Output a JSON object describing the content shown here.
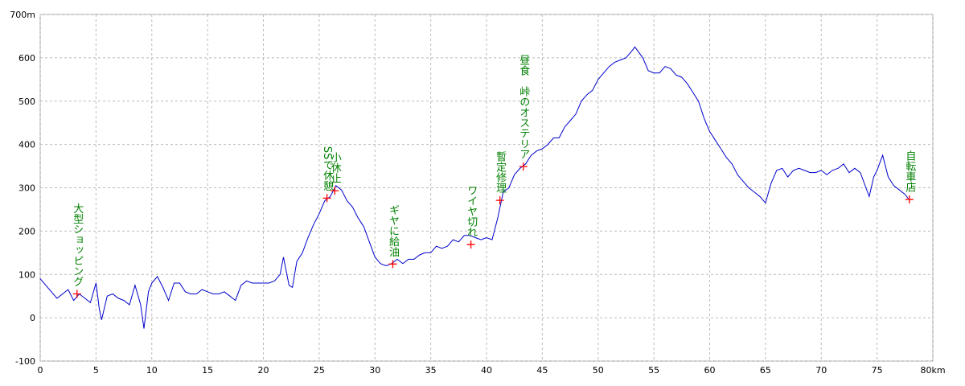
{
  "chart_data": {
    "type": "line",
    "color": "#0000cc",
    "grid": true,
    "marker_color": "#ff0000",
    "label_color": "#008000",
    "xlim": [
      0,
      80
    ],
    "ylim": [
      -100,
      700
    ],
    "xticks": [
      0,
      5,
      10,
      15,
      20,
      25,
      30,
      35,
      40,
      45,
      50,
      55,
      60,
      65,
      70,
      75,
      {
        "value": 80,
        "label": "80km"
      }
    ],
    "yticks": [
      -100,
      0,
      100,
      200,
      300,
      400,
      500,
      600,
      {
        "value": 700,
        "label": "700m"
      }
    ],
    "x": [
      0,
      0.5,
      1,
      1.5,
      2,
      2.5,
      3,
      3.5,
      4,
      4.5,
      5,
      5.3,
      5.5,
      6,
      6.5,
      7,
      7.5,
      8,
      8.5,
      9,
      9.3,
      9.7,
      10,
      10.5,
      11,
      11.5,
      12,
      12.5,
      13,
      13.5,
      14,
      14.5,
      15,
      15.5,
      16,
      16.5,
      17,
      17.5,
      18,
      18.5,
      19,
      19.5,
      20,
      20.5,
      21,
      21.5,
      21.8,
      22.3,
      22.6,
      23,
      23.5,
      24,
      24.5,
      25,
      25.5,
      26,
      26.5,
      27,
      27.5,
      28,
      28.5,
      29,
      29.5,
      30,
      30.5,
      31,
      31.5,
      32,
      32.5,
      33,
      33.5,
      34,
      34.5,
      35,
      35.5,
      36,
      36.5,
      37,
      37.5,
      38,
      38.5,
      39,
      39.5,
      40,
      40.5,
      41,
      41.5,
      42,
      42.5,
      43,
      43.5,
      44,
      44.5,
      45,
      45.5,
      46,
      46.5,
      47,
      47.5,
      48,
      48.5,
      49,
      49.5,
      50,
      50.5,
      51,
      51.5,
      52,
      52.5,
      53,
      53.3,
      54,
      54.5,
      55,
      55.5,
      56,
      56.5,
      57,
      57.5,
      58,
      58.5,
      59,
      59.5,
      60,
      60.5,
      61,
      61.5,
      62,
      62.5,
      63,
      63.5,
      64,
      64.5,
      65,
      65.5,
      66,
      66.5,
      67,
      67.5,
      68,
      68.5,
      69,
      69.5,
      70,
      70.5,
      71,
      71.5,
      72,
      72.5,
      73,
      73.5,
      74,
      74.3,
      74.7,
      75,
      75.5,
      76,
      76.5,
      77,
      77.5,
      77.8
    ],
    "values": [
      90,
      75,
      60,
      45,
      55,
      65,
      40,
      55,
      45,
      35,
      80,
      20,
      -5,
      50,
      55,
      45,
      40,
      30,
      75,
      30,
      -25,
      60,
      80,
      95,
      70,
      40,
      80,
      80,
      60,
      55,
      55,
      65,
      60,
      55,
      55,
      60,
      50,
      40,
      75,
      85,
      80,
      80,
      80,
      80,
      85,
      100,
      140,
      75,
      70,
      130,
      150,
      185,
      215,
      240,
      270,
      280,
      305,
      295,
      270,
      255,
      230,
      210,
      175,
      140,
      125,
      120,
      125,
      135,
      125,
      135,
      135,
      145,
      150,
      150,
      165,
      160,
      165,
      180,
      175,
      190,
      190,
      185,
      180,
      185,
      180,
      230,
      290,
      300,
      330,
      345,
      355,
      375,
      385,
      390,
      400,
      415,
      415,
      440,
      455,
      470,
      500,
      515,
      525,
      550,
      565,
      580,
      590,
      595,
      600,
      615,
      625,
      600,
      570,
      565,
      565,
      580,
      575,
      560,
      555,
      540,
      520,
      500,
      460,
      430,
      410,
      390,
      370,
      355,
      330,
      315,
      300,
      290,
      280,
      265,
      310,
      340,
      345,
      325,
      340,
      345,
      340,
      335,
      335,
      340,
      330,
      340,
      345,
      355,
      335,
      345,
      335,
      300,
      280,
      325,
      340,
      375,
      325,
      305,
      295,
      285,
      275
    ],
    "waypoints": [
      {
        "label": "大型ショッピング",
        "x": 3.3,
        "y": 55
      },
      {
        "label": "SSで休憩",
        "x": 25.7,
        "y": 276
      },
      {
        "label": "小休止",
        "x": 26.4,
        "y": 293
      },
      {
        "label": "ギヤに給油",
        "x": 31.6,
        "y": 124
      },
      {
        "label": "ワイヤ切れ",
        "x": 38.6,
        "y": 169
      },
      {
        "label": "暫定修理",
        "x": 41.2,
        "y": 271
      },
      {
        "label": "昼食　峠のオステリア",
        "x": 43.3,
        "y": 349
      },
      {
        "label": "自転車店",
        "x": 77.9,
        "y": 273
      }
    ]
  }
}
